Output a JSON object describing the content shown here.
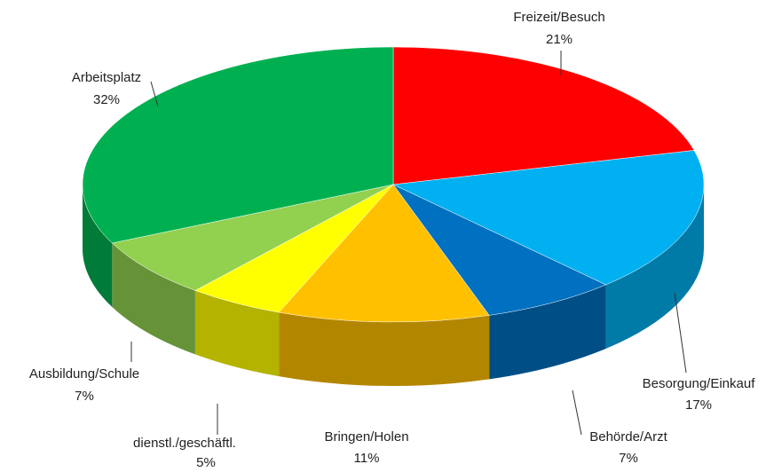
{
  "chart_data": {
    "type": "pie3d",
    "categories": [
      "Freizeit/Besuch",
      "Besorgung/Einkauf",
      "Behörde/Arzt",
      "Bringen/Holen",
      "dienstl./geschäftl.",
      "Ausbildung/Schule",
      "Arbeitsplatz"
    ],
    "values": [
      21,
      17,
      7,
      11,
      5,
      7,
      32
    ],
    "value_labels": [
      "21%",
      "17%",
      "7%",
      "11%",
      "5%",
      "7%",
      "32%"
    ],
    "colors": [
      "#ff0000",
      "#00b0f0",
      "#0070c0",
      "#ffc000",
      "#ffff00",
      "#92d050",
      "#00b050"
    ]
  }
}
